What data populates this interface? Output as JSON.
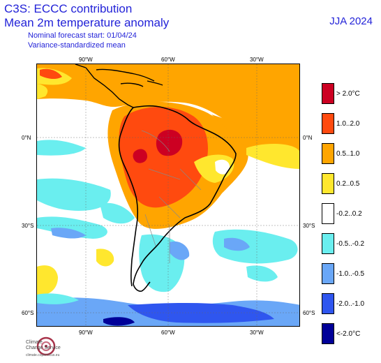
{
  "header": {
    "title_line1": "C3S: ECCC contribution",
    "title_line2": "Mean 2m temperature anomaly",
    "subtitle_line1": "Nominal forecast start: 01/04/24",
    "subtitle_line2": "Variance-standardized mean",
    "season": "JJA 2024"
  },
  "map": {
    "top_ticks": [
      "90°W",
      "60°W",
      "30°W"
    ],
    "bottom_ticks": [
      "90°W",
      "60°W",
      "30°W"
    ],
    "left_ticks": [
      "0°N",
      "30°S",
      "60°S"
    ],
    "right_ticks": [
      "0°N",
      "30°S",
      "60°S"
    ]
  },
  "legend": [
    {
      "label": "> 2.0°C",
      "color": "#cc0022"
    },
    {
      "label": "1.0..2.0",
      "color": "#ff4a0f"
    },
    {
      "label": "0.5..1.0",
      "color": "#ffa500"
    },
    {
      "label": "0.2..0.5",
      "color": "#ffe72e"
    },
    {
      "label": "-0.2..0.2",
      "color": "#ffffff"
    },
    {
      "label": "-0.5..-0.2",
      "color": "#6aeeef"
    },
    {
      "label": "-1.0..-0.5",
      "color": "#6aa7f7"
    },
    {
      "label": "-2.0..-1.0",
      "color": "#2f56ef"
    },
    {
      "label": "<-2.0°C",
      "color": "#000098"
    }
  ],
  "logo": {
    "line1": "Climate",
    "line2": "Change Service",
    "url": "climate.copernicus.eu",
    "icon": "climate-change-service-logo-icon"
  }
}
